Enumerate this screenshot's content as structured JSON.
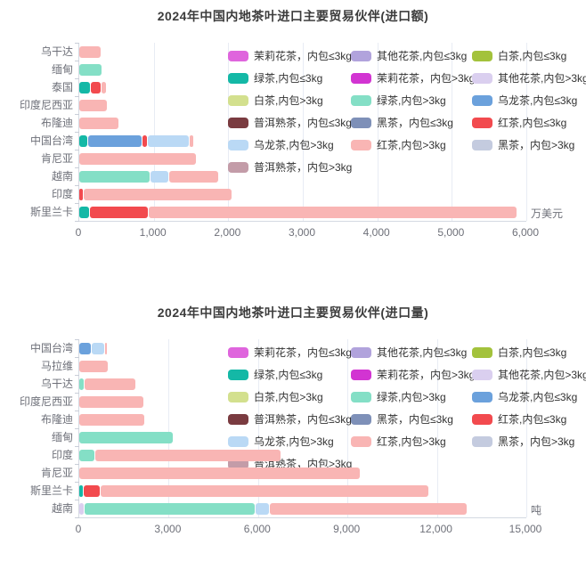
{
  "page_background": "#ffffff",
  "legend": {
    "items": [
      {
        "label": "茉莉花茶，内包≤3kg",
        "color": "#df65dd"
      },
      {
        "label": "其他花茶,内包≤3kg",
        "color": "#b1a3dc"
      },
      {
        "label": "白茶,内包≤3kg",
        "color": "#a3c23c"
      },
      {
        "label": "绿茶,内包≤3kg",
        "color": "#14b8a6"
      },
      {
        "label": "茉莉花茶，内包>3kg",
        "color": "#d234d2"
      },
      {
        "label": "其他花茶,内包>3kg",
        "color": "#dacfef"
      },
      {
        "label": "白茶,内包>3kg",
        "color": "#d3e08e"
      },
      {
        "label": "绿茶,内包>3kg",
        "color": "#84dfc6"
      },
      {
        "label": "乌龙茶,内包≤3kg",
        "color": "#6ba1dc"
      },
      {
        "label": "普洱熟茶，内包≤3kg",
        "color": "#7a3b40"
      },
      {
        "label": "黑茶，内包≤3kg",
        "color": "#7e90b8"
      },
      {
        "label": "红茶,内包≤3kg",
        "color": "#f24a4e"
      },
      {
        "label": "乌龙茶,内包>3kg",
        "color": "#bad9f5"
      },
      {
        "label": "红茶,内包>3kg",
        "color": "#f9b5b4"
      },
      {
        "label": "黑茶，内包>3kg",
        "color": "#c4cbdf"
      },
      {
        "label": "普洱熟茶，内包>3kg",
        "color": "#c39ca8"
      }
    ]
  },
  "chart_data": [
    {
      "type": "bar",
      "orientation": "horizontal",
      "stacked": true,
      "title": "2024年中国内地茶叶进口主要贸易伙伴(进口额)",
      "unit": "万美元",
      "xlim": [
        0,
        6000
      ],
      "x_ticks": [
        0,
        1000,
        2000,
        3000,
        4000,
        5000,
        6000
      ],
      "x_tick_labels": [
        "0",
        "1,000",
        "2,000",
        "3,000",
        "4,000",
        "5,000",
        "6,000"
      ],
      "grid": true,
      "legend_position": "top-right",
      "categories": [
        "乌干达",
        "缅甸",
        "泰国",
        "印度尼西亚",
        "布隆迪",
        "中国台湾",
        "肯尼亚",
        "越南",
        "印度",
        "斯里兰卡"
      ],
      "rows": [
        {
          "category": "乌干达",
          "segments": [
            {
              "series": "红茶,内包>3kg",
              "value": 290
            }
          ]
        },
        {
          "category": "缅甸",
          "segments": [
            {
              "series": "绿茶,内包>3kg",
              "value": 300
            }
          ]
        },
        {
          "category": "泰国",
          "segments": [
            {
              "series": "绿茶,内包≤3kg",
              "value": 140
            },
            {
              "series": "红茶,内包≤3kg",
              "value": 140
            },
            {
              "series": "红茶,内包>3kg",
              "value": 60
            }
          ]
        },
        {
          "category": "印度尼西亚",
          "segments": [
            {
              "series": "红茶,内包>3kg",
              "value": 370
            }
          ]
        },
        {
          "category": "布隆迪",
          "segments": [
            {
              "series": "红茶,内包>3kg",
              "value": 520
            }
          ]
        },
        {
          "category": "中国台湾",
          "segments": [
            {
              "series": "绿茶,内包≤3kg",
              "value": 110
            },
            {
              "series": "乌龙茶,内包≤3kg",
              "value": 720
            },
            {
              "series": "红茶,内包≤3kg",
              "value": 60
            },
            {
              "series": "乌龙茶,内包>3kg",
              "value": 550
            },
            {
              "series": "红茶,内包>3kg",
              "value": 40
            }
          ]
        },
        {
          "category": "肯尼亚",
          "segments": [
            {
              "series": "红茶,内包>3kg",
              "value": 1570
            }
          ]
        },
        {
          "category": "越南",
          "segments": [
            {
              "series": "绿茶,内包>3kg",
              "value": 945
            },
            {
              "series": "乌龙茶,内包>3kg",
              "value": 240
            },
            {
              "series": "红茶,内包>3kg",
              "value": 660
            }
          ]
        },
        {
          "category": "印度",
          "segments": [
            {
              "series": "红茶,内包≤3kg",
              "value": 50
            },
            {
              "series": "红茶,内包>3kg",
              "value": 1985
            }
          ]
        },
        {
          "category": "斯里兰卡",
          "segments": [
            {
              "series": "绿茶,内包≤3kg",
              "value": 135
            },
            {
              "series": "红茶,内包≤3kg",
              "value": 770
            },
            {
              "series": "红茶,内包>3kg",
              "value": 4945
            }
          ]
        }
      ]
    },
    {
      "type": "bar",
      "orientation": "horizontal",
      "stacked": true,
      "title": "2024年中国内地茶叶进口主要贸易伙伴(进口量)",
      "unit": "吨",
      "xlim": [
        0,
        15000
      ],
      "x_ticks": [
        0,
        3000,
        6000,
        9000,
        12000,
        15000
      ],
      "x_tick_labels": [
        "0",
        "3,000",
        "6,000",
        "9,000",
        "12,000",
        "15,000"
      ],
      "grid": true,
      "legend_position": "top-right",
      "categories": [
        "中国台湾",
        "马拉维",
        "乌干达",
        "印度尼西亚",
        "布隆迪",
        "缅甸",
        "印度",
        "肯尼亚",
        "斯里兰卡",
        "越南"
      ],
      "rows": [
        {
          "category": "中国台湾",
          "segments": [
            {
              "series": "乌龙茶,内包≤3kg",
              "value": 390
            },
            {
              "series": "乌龙茶,内包>3kg",
              "value": 420
            },
            {
              "series": "红茶,内包>3kg",
              "value": 60
            }
          ]
        },
        {
          "category": "马拉维",
          "segments": [
            {
              "series": "红茶,内包>3kg",
              "value": 960
            }
          ]
        },
        {
          "category": "乌干达",
          "segments": [
            {
              "series": "绿茶,内包>3kg",
              "value": 150
            },
            {
              "series": "红茶,内包>3kg",
              "value": 1700
            }
          ]
        },
        {
          "category": "印度尼西亚",
          "segments": [
            {
              "series": "红茶,内包>3kg",
              "value": 2150
            }
          ]
        },
        {
          "category": "布隆迪",
          "segments": [
            {
              "series": "红茶,内包>3kg",
              "value": 2180
            }
          ]
        },
        {
          "category": "缅甸",
          "segments": [
            {
              "series": "绿茶,内包>3kg",
              "value": 3140
            }
          ]
        },
        {
          "category": "印度",
          "segments": [
            {
              "series": "绿茶,内包>3kg",
              "value": 510
            },
            {
              "series": "红茶,内包>3kg",
              "value": 6200
            }
          ]
        },
        {
          "category": "肯尼亚",
          "segments": [
            {
              "series": "红茶,内包>3kg",
              "value": 9420
            }
          ]
        },
        {
          "category": "斯里兰卡",
          "segments": [
            {
              "series": "绿茶,内包≤3kg",
              "value": 120
            },
            {
              "series": "红茶,内包≤3kg",
              "value": 540
            },
            {
              "series": "红茶,内包>3kg",
              "value": 11000
            }
          ]
        },
        {
          "category": "越南",
          "segments": [
            {
              "series": "其他花茶,内包>3kg",
              "value": 150
            },
            {
              "series": "绿茶,内包>3kg",
              "value": 5700
            },
            {
              "series": "乌龙茶,内包>3kg",
              "value": 450
            },
            {
              "series": "红茶,内包>3kg",
              "value": 6600
            }
          ]
        }
      ]
    }
  ]
}
